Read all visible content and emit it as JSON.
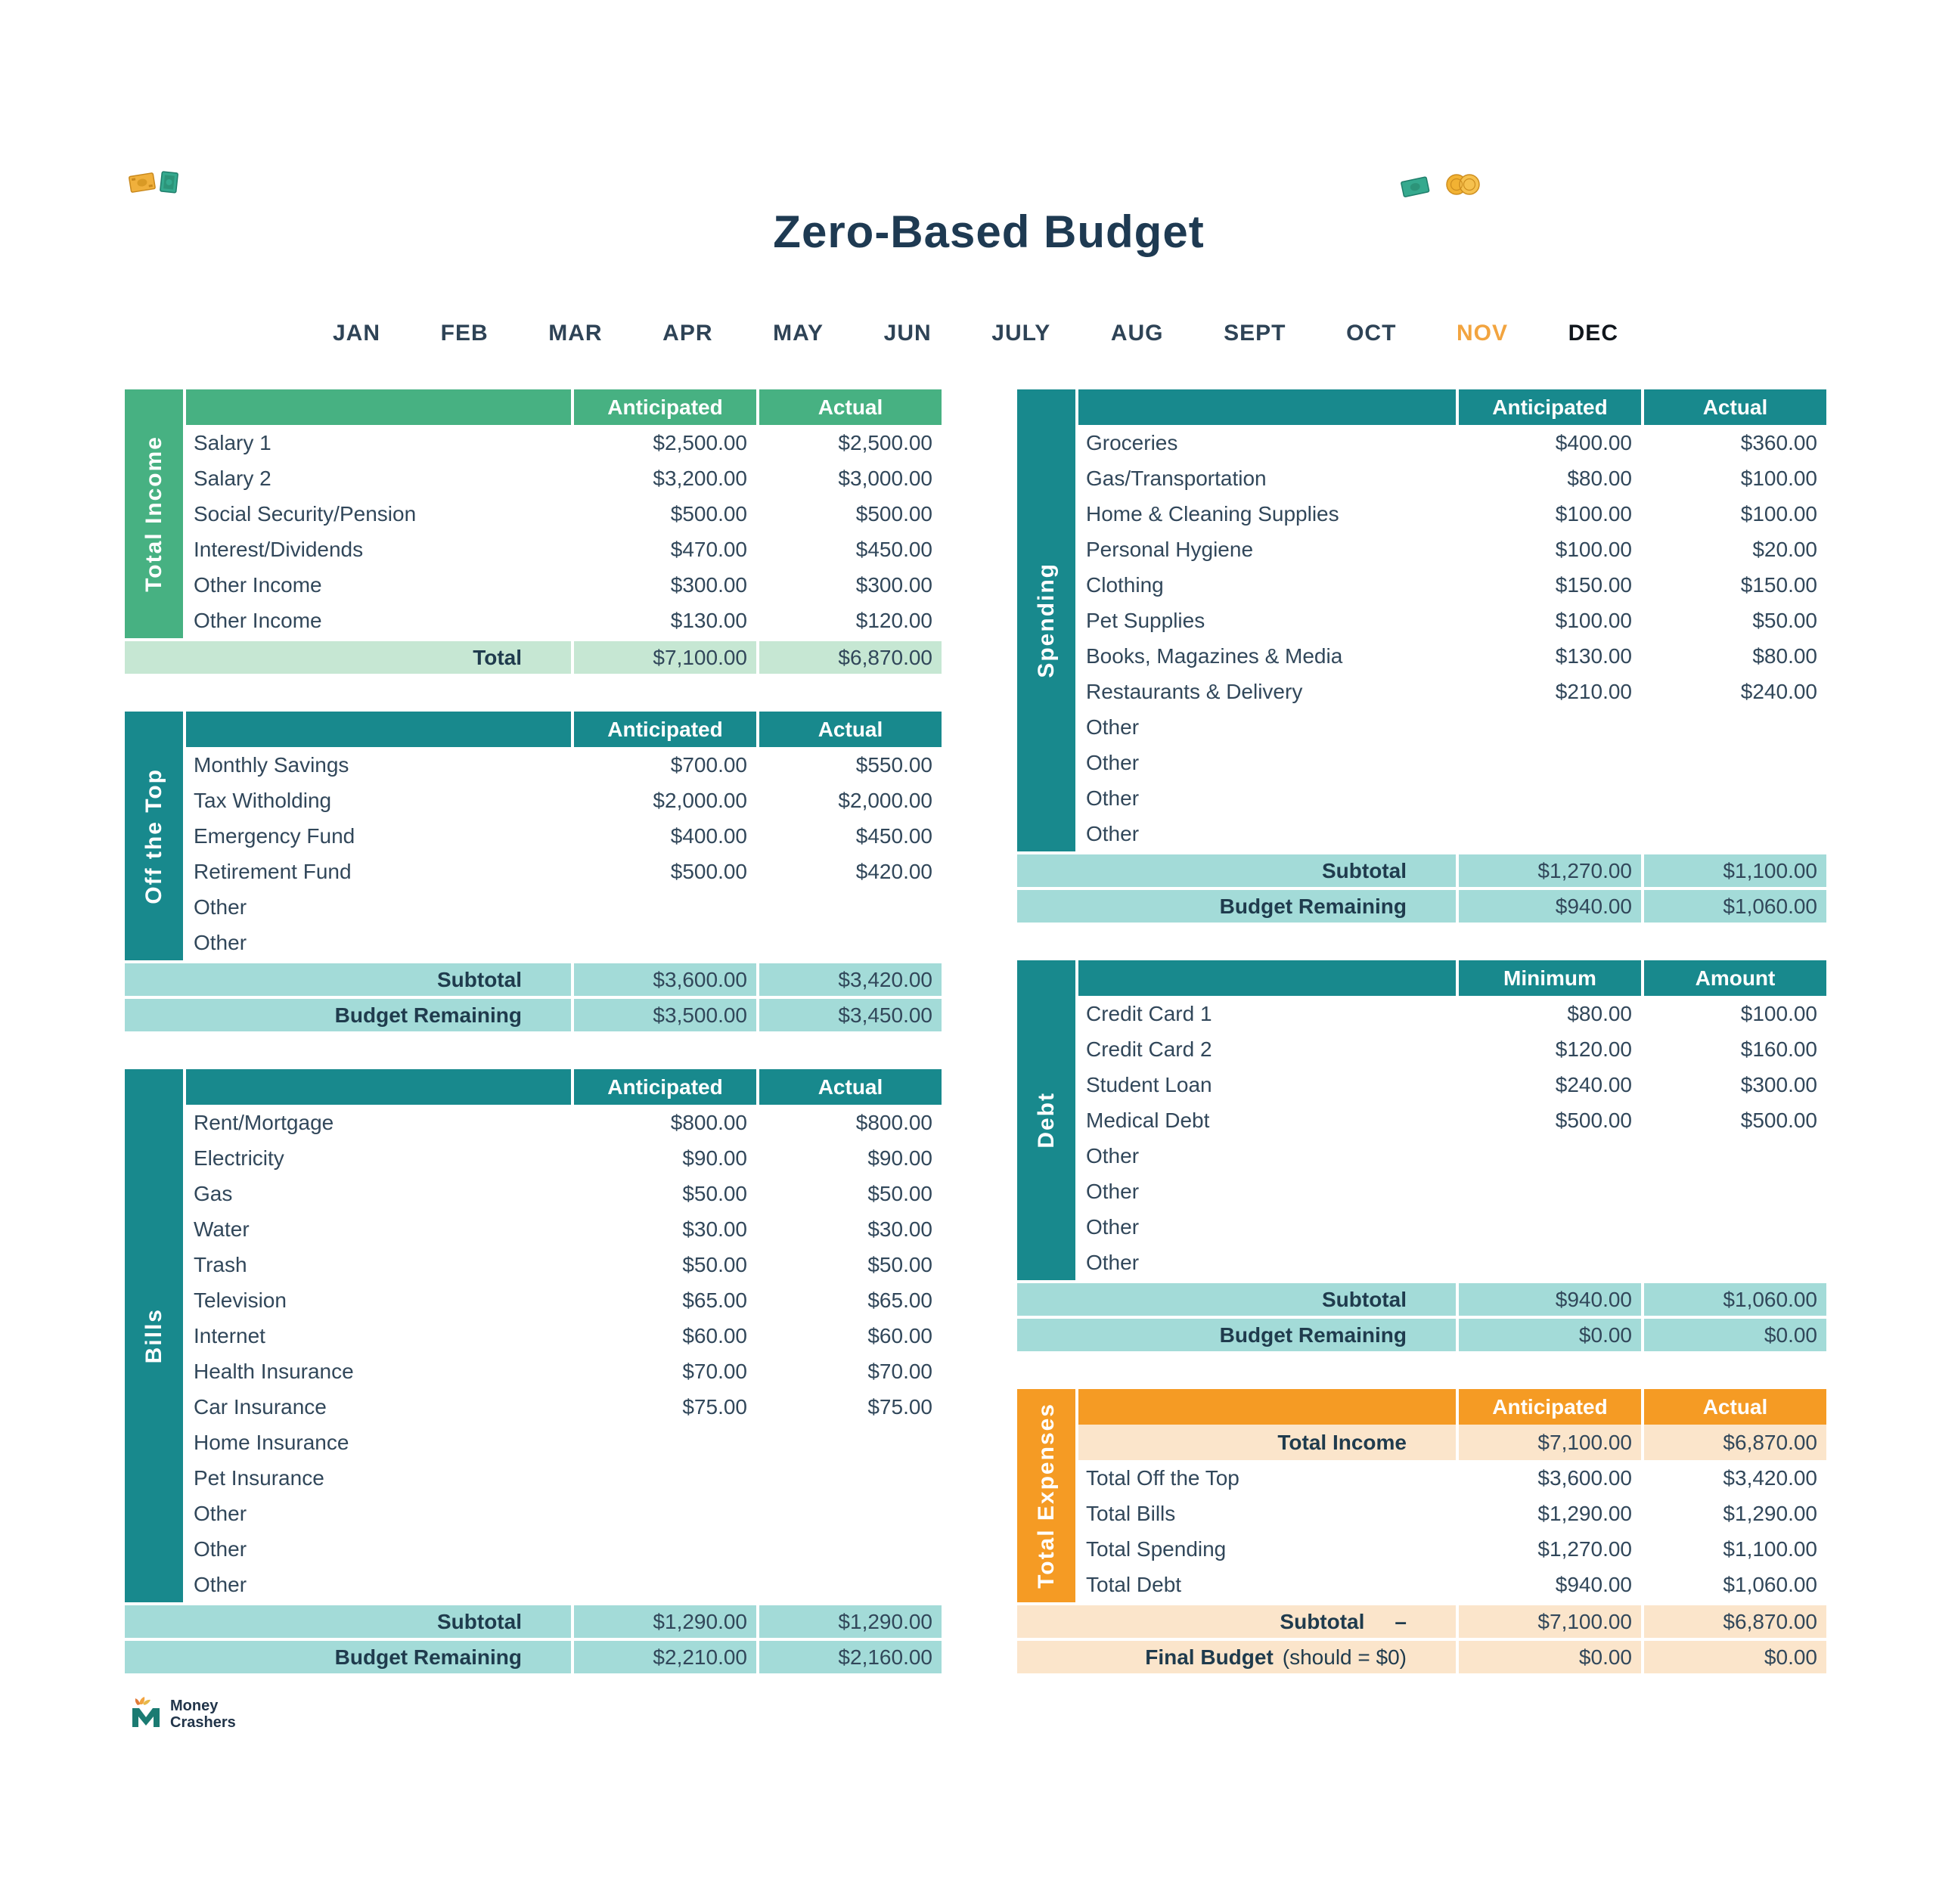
{
  "page": {
    "title": "Zero-Based Budget"
  },
  "months": {
    "active": "NOV",
    "items": [
      "JAN",
      "FEB",
      "MAR",
      "APR",
      "MAY",
      "JUN",
      "JULY",
      "AUG",
      "SEPT",
      "OCT",
      "NOV",
      "DEC"
    ]
  },
  "colors": {
    "green": "#47B182",
    "green_light": "#C6E7D3",
    "teal": "#18898D",
    "teal_light": "#A3DBD8",
    "orange": "#F59B24",
    "orange_light": "#FBE5CB",
    "navy_text": "#2E4356",
    "title_text": "#1E3A52",
    "nov_accent": "#F2A43F"
  },
  "tables": [
    {
      "id": "total-income",
      "column": "left",
      "theme": "green",
      "section": "Total Income",
      "col1": "Anticipated",
      "col2": "Actual",
      "rows": [
        {
          "label": "Salary 1",
          "v1": "$2,500.00",
          "v2": "$2,500.00"
        },
        {
          "label": "Salary 2",
          "v1": "$3,200.00",
          "v2": "$3,000.00"
        },
        {
          "label": "Social Security/Pension",
          "v1": "$500.00",
          "v2": "$500.00"
        },
        {
          "label": "Interest/Dividends",
          "v1": "$470.00",
          "v2": "$450.00"
        },
        {
          "label": "Other Income",
          "v1": "$300.00",
          "v2": "$300.00"
        },
        {
          "label": "Other Income",
          "v1": "$130.00",
          "v2": "$120.00"
        }
      ],
      "footer": [
        {
          "label": "Total",
          "v1": "$7,100.00",
          "v2": "$6,870.00"
        }
      ]
    },
    {
      "id": "off-the-top",
      "column": "left",
      "theme": "teal",
      "section": "Off the Top",
      "col1": "Anticipated",
      "col2": "Actual",
      "rows": [
        {
          "label": "Monthly Savings",
          "v1": "$700.00",
          "v2": "$550.00"
        },
        {
          "label": "Tax Witholding",
          "v1": "$2,000.00",
          "v2": "$2,000.00"
        },
        {
          "label": "Emergency Fund",
          "v1": "$400.00",
          "v2": "$450.00"
        },
        {
          "label": "Retirement Fund",
          "v1": "$500.00",
          "v2": "$420.00"
        },
        {
          "label": "Other",
          "v1": "",
          "v2": ""
        },
        {
          "label": "Other",
          "v1": "",
          "v2": ""
        }
      ],
      "footer": [
        {
          "label": "Subtotal",
          "v1": "$3,600.00",
          "v2": "$3,420.00"
        },
        {
          "label": "Budget Remaining",
          "v1": "$3,500.00",
          "v2": "$3,450.00"
        }
      ]
    },
    {
      "id": "bills",
      "column": "left",
      "theme": "teal",
      "section": "Bills",
      "col1": "Anticipated",
      "col2": "Actual",
      "rows": [
        {
          "label": "Rent/Mortgage",
          "v1": "$800.00",
          "v2": "$800.00"
        },
        {
          "label": "Electricity",
          "v1": "$90.00",
          "v2": "$90.00"
        },
        {
          "label": "Gas",
          "v1": "$50.00",
          "v2": "$50.00"
        },
        {
          "label": "Water",
          "v1": "$30.00",
          "v2": "$30.00"
        },
        {
          "label": "Trash",
          "v1": "$50.00",
          "v2": "$50.00"
        },
        {
          "label": "Television",
          "v1": "$65.00",
          "v2": "$65.00"
        },
        {
          "label": "Internet",
          "v1": "$60.00",
          "v2": "$60.00"
        },
        {
          "label": "Health Insurance",
          "v1": "$70.00",
          "v2": "$70.00"
        },
        {
          "label": "Car Insurance",
          "v1": "$75.00",
          "v2": "$75.00"
        },
        {
          "label": "Home Insurance",
          "v1": "",
          "v2": ""
        },
        {
          "label": "Pet Insurance",
          "v1": "",
          "v2": ""
        },
        {
          "label": "Other",
          "v1": "",
          "v2": ""
        },
        {
          "label": "Other",
          "v1": "",
          "v2": ""
        },
        {
          "label": "Other",
          "v1": "",
          "v2": ""
        }
      ],
      "footer": [
        {
          "label": "Subtotal",
          "v1": "$1,290.00",
          "v2": "$1,290.00"
        },
        {
          "label": "Budget Remaining",
          "v1": "$2,210.00",
          "v2": "$2,160.00"
        }
      ]
    },
    {
      "id": "spending",
      "column": "right",
      "theme": "teal",
      "section": "Spending",
      "col1": "Anticipated",
      "col2": "Actual",
      "rows": [
        {
          "label": "Groceries",
          "v1": "$400.00",
          "v2": "$360.00"
        },
        {
          "label": "Gas/Transportation",
          "v1": "$80.00",
          "v2": "$100.00"
        },
        {
          "label": "Home & Cleaning Supplies",
          "v1": "$100.00",
          "v2": "$100.00"
        },
        {
          "label": "Personal Hygiene",
          "v1": "$100.00",
          "v2": "$20.00"
        },
        {
          "label": "Clothing",
          "v1": "$150.00",
          "v2": "$150.00"
        },
        {
          "label": "Pet Supplies",
          "v1": "$100.00",
          "v2": "$50.00"
        },
        {
          "label": "Books, Magazines & Media",
          "v1": "$130.00",
          "v2": "$80.00"
        },
        {
          "label": "Restaurants & Delivery",
          "v1": "$210.00",
          "v2": "$240.00"
        },
        {
          "label": "Other",
          "v1": "",
          "v2": ""
        },
        {
          "label": "Other",
          "v1": "",
          "v2": ""
        },
        {
          "label": "Other",
          "v1": "",
          "v2": ""
        },
        {
          "label": "Other",
          "v1": "",
          "v2": ""
        }
      ],
      "footer": [
        {
          "label": "Subtotal",
          "v1": "$1,270.00",
          "v2": "$1,100.00"
        },
        {
          "label": "Budget Remaining",
          "v1": "$940.00",
          "v2": "$1,060.00"
        }
      ]
    },
    {
      "id": "debt",
      "column": "right",
      "theme": "teal",
      "section": "Debt",
      "col1": "Minimum",
      "col2": "Amount",
      "rows": [
        {
          "label": "Credit Card 1",
          "v1": "$80.00",
          "v2": "$100.00"
        },
        {
          "label": "Credit Card 2",
          "v1": "$120.00",
          "v2": "$160.00"
        },
        {
          "label": "Student Loan",
          "v1": "$240.00",
          "v2": "$300.00"
        },
        {
          "label": "Medical Debt",
          "v1": "$500.00",
          "v2": "$500.00"
        },
        {
          "label": "Other",
          "v1": "",
          "v2": ""
        },
        {
          "label": "Other",
          "v1": "",
          "v2": ""
        },
        {
          "label": "Other",
          "v1": "",
          "v2": ""
        },
        {
          "label": "Other",
          "v1": "",
          "v2": ""
        }
      ],
      "footer": [
        {
          "label": "Subtotal",
          "v1": "$940.00",
          "v2": "$1,060.00"
        },
        {
          "label": "Budget Remaining",
          "v1": "$0.00",
          "v2": "$0.00"
        }
      ]
    },
    {
      "id": "total-expenses",
      "column": "right",
      "theme": "orange",
      "section": "Total Expenses",
      "col1": "Anticipated",
      "col2": "Actual",
      "rows": [
        {
          "label": "Total Income",
          "v1": "$7,100.00",
          "v2": "$6,870.00",
          "highlight": true,
          "bold": true,
          "align": "right"
        },
        {
          "label": "Total Off the Top",
          "v1": "$3,600.00",
          "v2": "$3,420.00"
        },
        {
          "label": "Total Bills",
          "v1": "$1,290.00",
          "v2": "$1,290.00"
        },
        {
          "label": "Total Spending",
          "v1": "$1,270.00",
          "v2": "$1,100.00"
        },
        {
          "label": "Total Debt",
          "v1": "$940.00",
          "v2": "$1,060.00"
        }
      ],
      "footer": [
        {
          "label": "Subtotal",
          "dash": "–",
          "v1": "$7,100.00",
          "v2": "$6,870.00"
        },
        {
          "label": "Final Budget",
          "label2": "(should = $0)",
          "v1": "$0.00",
          "v2": "$0.00"
        }
      ]
    }
  ],
  "logo": {
    "line1": "Money",
    "line2": "Crashers"
  }
}
